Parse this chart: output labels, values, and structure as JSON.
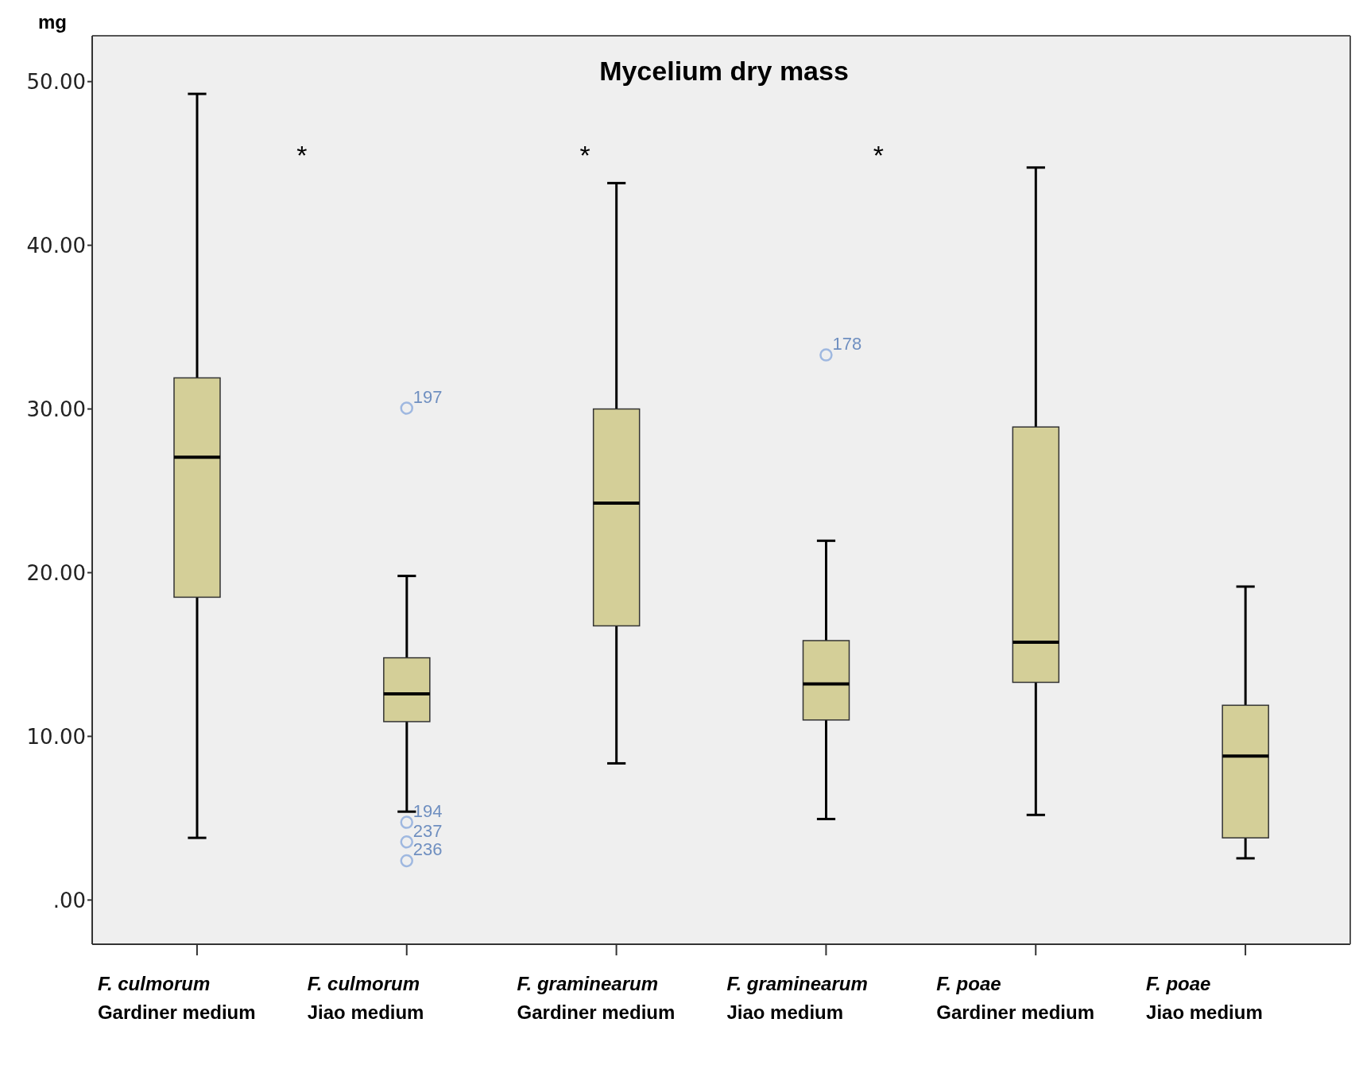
{
  "chart_data": {
    "type": "box",
    "title": "Mycelium dry mass",
    "ylabel": "mg",
    "categories": [
      "F. culmorum\nGardiner medium",
      "F. culmorum\nJiao medium",
      "F. graminearum\nGardiner medium",
      "F. graminearum\nJiao medium",
      "F. poae\nGardiner medium",
      "F. poae\nJiao medium"
    ],
    "boxes": [
      {
        "low": 3.8,
        "q1": 18.5,
        "median": 27.05,
        "q3": 31.9,
        "high": 49.25
      },
      {
        "low": 5.4,
        "q1": 10.9,
        "median": 12.6,
        "q3": 14.8,
        "high": 19.8,
        "outliers": [
          30.05,
          4.75,
          3.55,
          2.4
        ]
      },
      {
        "low": 8.35,
        "q1": 16.75,
        "median": 24.25,
        "q3": 30.0,
        "high": 43.8
      },
      {
        "low": 4.95,
        "q1": 11.0,
        "median": 13.2,
        "q3": 15.85,
        "high": 21.95,
        "outliers": [
          33.3
        ]
      },
      {
        "low": 5.2,
        "q1": 13.3,
        "median": 15.75,
        "q3": 28.9,
        "high": 44.75
      },
      {
        "low": 2.55,
        "q1": 3.8,
        "median": 8.8,
        "q3": 11.9,
        "high": 19.15
      }
    ],
    "color": "#d4cf98",
    "ylim": [
      -2.7,
      52.8
    ],
    "yticks": [
      {
        "value": 0,
        "label": ".00"
      },
      {
        "value": 10,
        "label": "10.00"
      },
      {
        "value": 20,
        "label": "20.00"
      },
      {
        "value": 30,
        "label": "30.00"
      },
      {
        "value": 40,
        "label": "40.00"
      },
      {
        "value": 50,
        "label": "50.00"
      }
    ],
    "annotations": [
      "*",
      "*",
      "*",
      "197",
      "194",
      "237",
      "236",
      "178"
    ]
  }
}
